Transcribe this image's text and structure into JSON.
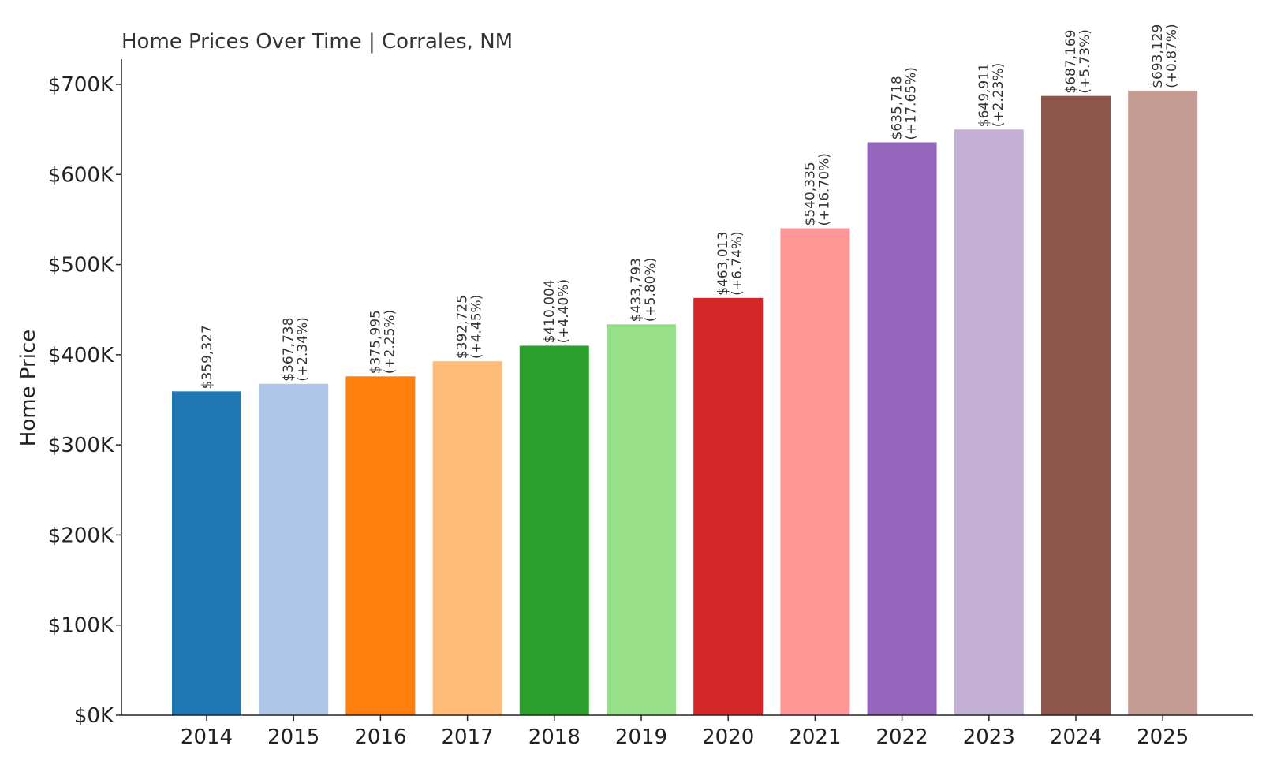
{
  "chart_data": {
    "type": "bar",
    "title": "Home Prices Over Time | Corrales, NM",
    "xlabel": "",
    "ylabel": "Home Price",
    "ylim": [
      0,
      728000
    ],
    "yticks": [
      0,
      100000,
      200000,
      300000,
      400000,
      500000,
      600000,
      700000
    ],
    "ytick_labels": [
      "$0K",
      "$100K",
      "$200K",
      "$300K",
      "$400K",
      "$500K",
      "$600K",
      "$700K"
    ],
    "grid": false,
    "legend": "none",
    "categories": [
      "2014",
      "2015",
      "2016",
      "2017",
      "2018",
      "2019",
      "2020",
      "2021",
      "2022",
      "2023",
      "2024",
      "2025"
    ],
    "values": [
      359327,
      367738,
      375995,
      392725,
      410004,
      433793,
      463013,
      540335,
      635718,
      649911,
      687169,
      693129
    ],
    "value_labels": [
      "$359,327",
      "$367,738",
      "$375,995",
      "$392,725",
      "$410,004",
      "$433,793",
      "$463,013",
      "$540,335",
      "$635,718",
      "$649,911",
      "$687,169",
      "$693,129"
    ],
    "change_labels": [
      "",
      "(+2.34%)",
      "(+2.25%)",
      "(+4.45%)",
      "(+4.40%)",
      "(+5.80%)",
      "(+6.74%)",
      "(+16.70%)",
      "(+17.65%)",
      "(+2.23%)",
      "(+5.73%)",
      "(+0.87%)"
    ],
    "colors": [
      "#1f77b4",
      "#aec7e8",
      "#ff7f0e",
      "#ffbb78",
      "#2ca02c",
      "#98df8a",
      "#d62728",
      "#ff9896",
      "#9467bd",
      "#c5b0d5",
      "#8c564b",
      "#c49c94"
    ]
  }
}
